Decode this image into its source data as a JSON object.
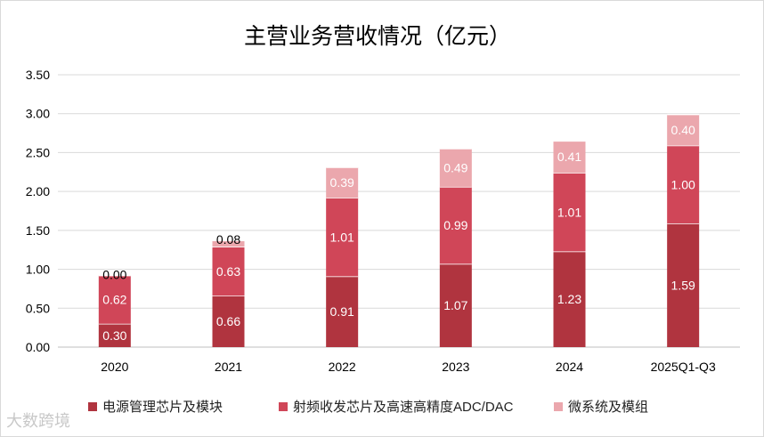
{
  "chart_data": {
    "type": "bar",
    "stacked": true,
    "title": "主营业务营收情况（亿元）",
    "categories": [
      "2020",
      "2021",
      "2022",
      "2023",
      "2024",
      "2025Q1-Q3"
    ],
    "series": [
      {
        "name": "电源管理芯片及模块",
        "color": "#b0343f",
        "values": [
          0.3,
          0.66,
          0.91,
          1.07,
          1.23,
          1.59
        ],
        "labels": [
          "0.30",
          "0.66",
          "0.91",
          "1.07",
          "1.23",
          "1.59"
        ]
      },
      {
        "name": "射频收发芯片及高速高精度ADC/DAC",
        "color": "#d04658",
        "values": [
          0.62,
          0.63,
          1.01,
          0.99,
          1.01,
          1.0
        ],
        "labels": [
          "0.62",
          "0.63",
          "1.01",
          "0.99",
          "1.01",
          "1.00"
        ]
      },
      {
        "name": "微系统及模组",
        "color": "#eba7ad",
        "values": [
          0.0,
          0.08,
          0.39,
          0.49,
          0.41,
          0.4
        ],
        "labels": [
          "0.00",
          "0.08",
          "0.39",
          "0.49",
          "0.41",
          "0.40"
        ]
      }
    ],
    "yticks": [
      "0.00",
      "0.50",
      "1.00",
      "1.50",
      "2.00",
      "2.50",
      "3.00",
      "3.50"
    ],
    "ylim": [
      0,
      3.5
    ],
    "grid": true,
    "legend": "bottom",
    "xlabel": "",
    "ylabel": ""
  },
  "watermark": "大数跨境"
}
